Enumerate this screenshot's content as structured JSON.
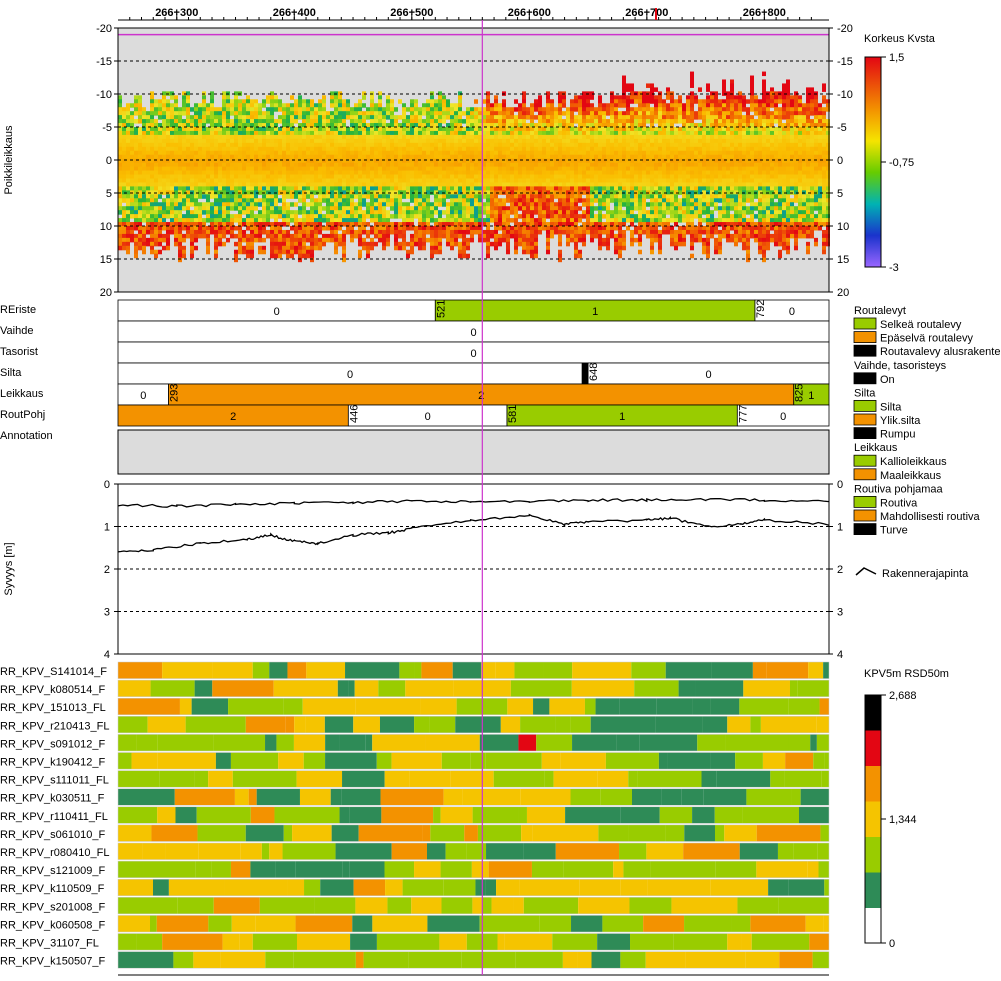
{
  "chart_data": [
    {
      "type": "heatmap",
      "name": "cross-section",
      "ylabel": "Poikkileikkaus",
      "x_ticks": [
        "266+300",
        "266+400",
        "266+500",
        "266+600",
        "266+700",
        "266+800"
      ],
      "x_tick_values": [
        266300,
        266400,
        266500,
        266600,
        266700,
        266800
      ],
      "xlim": [
        266250,
        266855
      ],
      "y_ticks": [
        -20,
        -15,
        -10,
        -5,
        0,
        5,
        10,
        15,
        20
      ],
      "ylim": [
        -20,
        20
      ],
      "right_y_ticks": [
        "-20",
        "-15",
        "-10",
        "-5",
        "0",
        "5",
        "10",
        "15",
        "20"
      ],
      "cursor_x": 266560,
      "colorbar": {
        "title": "Korkeus Kvsta",
        "labels": [
          "1,5",
          "-0,75",
          "-3"
        ],
        "range": [
          -3,
          1.5
        ]
      }
    },
    {
      "type": "table",
      "name": "feature-tracks",
      "rows": [
        {
          "label": "REriste",
          "segments": [
            {
              "from": 266250,
              "to": 266520,
              "value": "0",
              "color": "#ffffff",
              "start_label": ""
            },
            {
              "from": 266520,
              "to": 266792,
              "value": "1",
              "color": "#99cc00",
              "start_label": "521"
            },
            {
              "from": 266792,
              "to": 266855,
              "value": "0",
              "color": "#ffffff",
              "start_label": "792"
            }
          ]
        },
        {
          "label": "Vaihde",
          "segments": [
            {
              "from": 266250,
              "to": 266855,
              "value": "0",
              "color": "#ffffff",
              "start_label": ""
            }
          ]
        },
        {
          "label": "Tasorist",
          "segments": [
            {
              "from": 266250,
              "to": 266855,
              "value": "0",
              "color": "#ffffff",
              "start_label": ""
            }
          ]
        },
        {
          "label": "Silta",
          "segments": [
            {
              "from": 266250,
              "to": 266645,
              "value": "0",
              "color": "#ffffff",
              "start_label": ""
            },
            {
              "from": 266645,
              "to": 266650,
              "value": "",
              "color": "#000000",
              "start_label": ""
            },
            {
              "from": 266650,
              "to": 266855,
              "value": "0",
              "color": "#ffffff",
              "start_label": "648"
            }
          ]
        },
        {
          "label": "Leikkaus",
          "segments": [
            {
              "from": 266250,
              "to": 266293,
              "value": "0",
              "color": "#ffffff",
              "start_label": ""
            },
            {
              "from": 266293,
              "to": 266825,
              "value": "2",
              "color": "#f39200",
              "start_label": "293"
            },
            {
              "from": 266825,
              "to": 266855,
              "value": "1",
              "color": "#99cc00",
              "start_label": "825"
            }
          ]
        },
        {
          "label": "RoutPohj",
          "segments": [
            {
              "from": 266250,
              "to": 266446,
              "value": "2",
              "color": "#f39200",
              "start_label": ""
            },
            {
              "from": 266446,
              "to": 266581,
              "value": "0",
              "color": "#ffffff",
              "start_label": "446"
            },
            {
              "from": 266581,
              "to": 266777,
              "value": "1",
              "color": "#99cc00",
              "start_label": "581"
            },
            {
              "from": 266777,
              "to": 266855,
              "value": "0",
              "color": "#ffffff",
              "start_label": "777"
            }
          ]
        },
        {
          "label": "Annotation",
          "segments": []
        }
      ]
    },
    {
      "type": "line",
      "name": "depth-profile",
      "ylabel": "Syvyys [m]",
      "ylim": [
        0,
        4
      ],
      "y_ticks": [
        "0",
        "1",
        "2",
        "3",
        "4"
      ],
      "series": [
        {
          "name": "Rakennerajapinta",
          "x": [
            266250,
            266300,
            266350,
            266400,
            266450,
            266500,
            266550,
            266600,
            266650,
            266700,
            266750,
            266800,
            266855
          ],
          "values": [
            0.5,
            0.52,
            0.48,
            0.45,
            0.44,
            0.4,
            0.42,
            0.4,
            0.38,
            0.38,
            0.36,
            0.38,
            0.4
          ]
        },
        {
          "name": "Rakennerajapinta",
          "x": [
            266250,
            266280,
            266320,
            266360,
            266380,
            266400,
            266420,
            266450,
            266480,
            266500,
            266550,
            266600,
            266630,
            266650,
            266700,
            266720,
            266750,
            266780,
            266800,
            266855
          ],
          "values": [
            1.6,
            1.55,
            1.4,
            1.3,
            1.2,
            1.35,
            1.4,
            1.2,
            1.15,
            1.05,
            0.85,
            0.75,
            0.95,
            0.9,
            0.85,
            0.8,
            1.0,
            0.95,
            0.85,
            0.95
          ]
        }
      ]
    },
    {
      "type": "heatmap",
      "name": "kpv-tracks",
      "rows": [
        "RR_KPV_S141014_F",
        "RR_KPV_k080514_F",
        "RR_KPV_151013_FL",
        "RR_KPV_r210413_FL",
        "RR_KPV_s091012_F",
        "RR_KPV_k190412_F",
        "RR_KPV_s111011_FL",
        "RR_KPV_k030511_F",
        "RR_KPV_r110411_FL",
        "RR_KPV_s061010_F",
        "RR_KPV_r080410_FL",
        "RR_KPV_s121009_F",
        "RR_KPV_k110509_F",
        "RR_KPV_s201008_F",
        "RR_KPV_k060508_F",
        "RR_KPV_31107_FL",
        "RR_KPV_k150507_F"
      ],
      "colorbar": {
        "title": "KPV5m RSD50m",
        "labels": [
          "2,688",
          "1,344",
          "0"
        ],
        "range": [
          0,
          2.688
        ]
      }
    }
  ],
  "legend": {
    "groups": [
      {
        "title": "Routalevyt",
        "items": [
          {
            "label": "Selkeä routalevy",
            "color": "#99cc00"
          },
          {
            "label": "Epäselvä routalevy",
            "color": "#f39200"
          },
          {
            "label": "Routavalevy alusrakenteessa",
            "color": "#000000"
          }
        ]
      },
      {
        "title": "Vaihde, tasoristeys",
        "items": [
          {
            "label": "On",
            "color": "#000000"
          }
        ]
      },
      {
        "title": "Silta",
        "items": [
          {
            "label": "Silta",
            "color": "#99cc00"
          },
          {
            "label": "Ylik.silta",
            "color": "#f39200"
          },
          {
            "label": "Rumpu",
            "color": "#000000"
          }
        ]
      },
      {
        "title": "Leikkaus",
        "items": [
          {
            "label": "Kallioleikkaus",
            "color": "#99cc00"
          },
          {
            "label": "Maaleikkaus",
            "color": "#f39200"
          }
        ]
      },
      {
        "title": "Routiva pohjamaa",
        "items": [
          {
            "label": "Routiva",
            "color": "#99cc00"
          },
          {
            "label": "Mahdollisesti routiva",
            "color": "#f39200"
          },
          {
            "label": "Turve",
            "color": "#000000"
          }
        ]
      }
    ],
    "line_item": "Rakennerajapinta"
  },
  "colors": {
    "grey": "#dcdcdc",
    "cursor": "#cc33cc",
    "green_dark": "#2e8b57",
    "green": "#99cc00",
    "yellow": "#f5c400",
    "orange": "#f39200",
    "red": "#e30613"
  }
}
